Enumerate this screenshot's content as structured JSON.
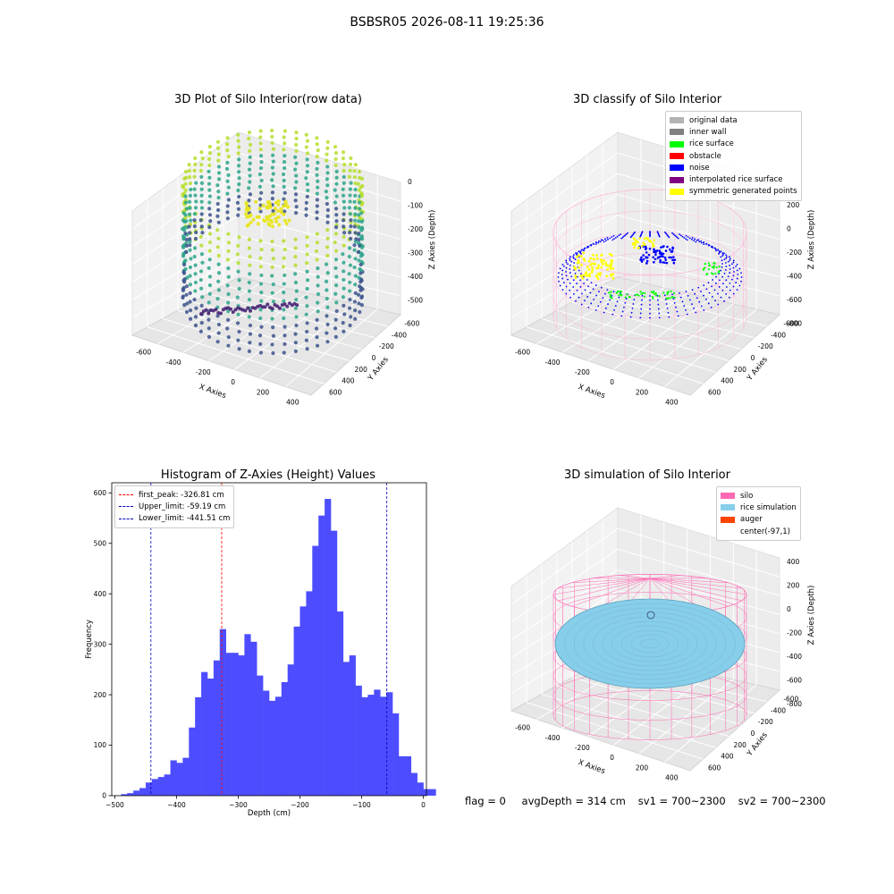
{
  "suptitle": "BSBSR05 2026-08-11 19:25:36",
  "footer": {
    "flag": "flag = 0",
    "avg_depth": "avgDepth = 314 cm",
    "sv1": "sv1 = 700~2300",
    "sv2": "sv2 = 700~2300"
  },
  "chart_data": [
    {
      "type": "scatter",
      "title": "3D Plot of Silo Interior(row data)",
      "xlabel": "X Axies",
      "ylabel": "Y Axies",
      "zlabel": "Z Axies (Depth)",
      "x_ticks": [
        "-600",
        "-400",
        "-200",
        "0",
        "200",
        "400"
      ],
      "y_ticks": [
        "-600",
        "-400",
        "-200",
        "0",
        "200",
        "400",
        "600"
      ],
      "z_ticks": [
        "0",
        "-100",
        "-200",
        "-300",
        "-400",
        "-500"
      ],
      "colormap": "viridis",
      "colors": {
        "ring": "#2ba58a",
        "upper": "#b5de2b",
        "peak": "#e8e419",
        "lower": "#3b528b",
        "bottom": "#482475"
      }
    },
    {
      "type": "scatter",
      "title": "3D classify of Silo Interior",
      "xlabel": "X Axies",
      "ylabel": "Y Axies",
      "zlabel": "Z Axies (Depth)",
      "x_ticks": [
        "-600",
        "-400",
        "-200",
        "0",
        "200",
        "400"
      ],
      "y_ticks": [
        "-600",
        "-400",
        "-200",
        "0",
        "200",
        "400",
        "600"
      ],
      "z_ticks": [
        "200",
        "0",
        "-200",
        "-400",
        "-600",
        "-800"
      ],
      "legend": [
        {
          "label": "original data",
          "color": "#b3b3b3"
        },
        {
          "label": "inner wall",
          "color": "#808080"
        },
        {
          "label": "rice surface",
          "color": "#00ff00"
        },
        {
          "label": "obstacle",
          "color": "#ff0000"
        },
        {
          "label": "noise",
          "color": "#0000ff"
        },
        {
          "label": "interpolated rice surface",
          "color": "#800080"
        },
        {
          "label": "symmetric generated points",
          "color": "#ffff00"
        }
      ],
      "wall_color": "#ffb6d9"
    },
    {
      "type": "bar",
      "title": "Histogram of Z-Axies (Height) Values",
      "xlabel": "Depth (cm)",
      "ylabel": "Frequency",
      "xlim": [
        -505,
        5
      ],
      "ylim": [
        0,
        620
      ],
      "x_ticks": [
        -500,
        -400,
        -300,
        -200,
        -100,
        0
      ],
      "y_ticks": [
        0,
        100,
        200,
        300,
        400,
        500,
        600
      ],
      "bin_start": -490,
      "bin_width": 10,
      "values": [
        3,
        5,
        10,
        15,
        26,
        33,
        37,
        42,
        70,
        65,
        75,
        135,
        195,
        245,
        232,
        268,
        330,
        283,
        283,
        278,
        320,
        305,
        238,
        208,
        188,
        196,
        225,
        260,
        335,
        375,
        405,
        495,
        555,
        588,
        525,
        365,
        265,
        278,
        218,
        195,
        200,
        210,
        196,
        205,
        163,
        78,
        78,
        45,
        26,
        13,
        13
      ],
      "bar_color": "#4d4dff",
      "vlines": [
        {
          "x": -326.81,
          "label": "first_peak: -326.81 cm",
          "color": "#ff0000"
        },
        {
          "x": -59.19,
          "label": "Upper_limit: -59.19 cm",
          "color": "#0000bb"
        },
        {
          "x": -441.51,
          "label": "Lower_limit: -441.51 cm",
          "color": "#0000bb"
        }
      ]
    },
    {
      "type": "other",
      "title": "3D simulation of Silo Interior",
      "xlabel": "X Axies",
      "ylabel": "Y Axies",
      "zlabel": "Z Axies (Depth)",
      "x_ticks": [
        "-600",
        "-400",
        "-200",
        "0",
        "200",
        "400"
      ],
      "y_ticks": [
        "-600",
        "-400",
        "-200",
        "0",
        "200",
        "400",
        "600"
      ],
      "z_ticks": [
        "400",
        "200",
        "0",
        "-200",
        "-400",
        "-600",
        "-800"
      ],
      "legend": [
        {
          "label": "silo",
          "color": "#ff69b4"
        },
        {
          "label": "rice simulation",
          "color": "#87ceeb"
        },
        {
          "label": "auger",
          "color": "#ff4500"
        },
        {
          "label": "center(-97,1)",
          "color": "#ffffff"
        }
      ]
    }
  ]
}
